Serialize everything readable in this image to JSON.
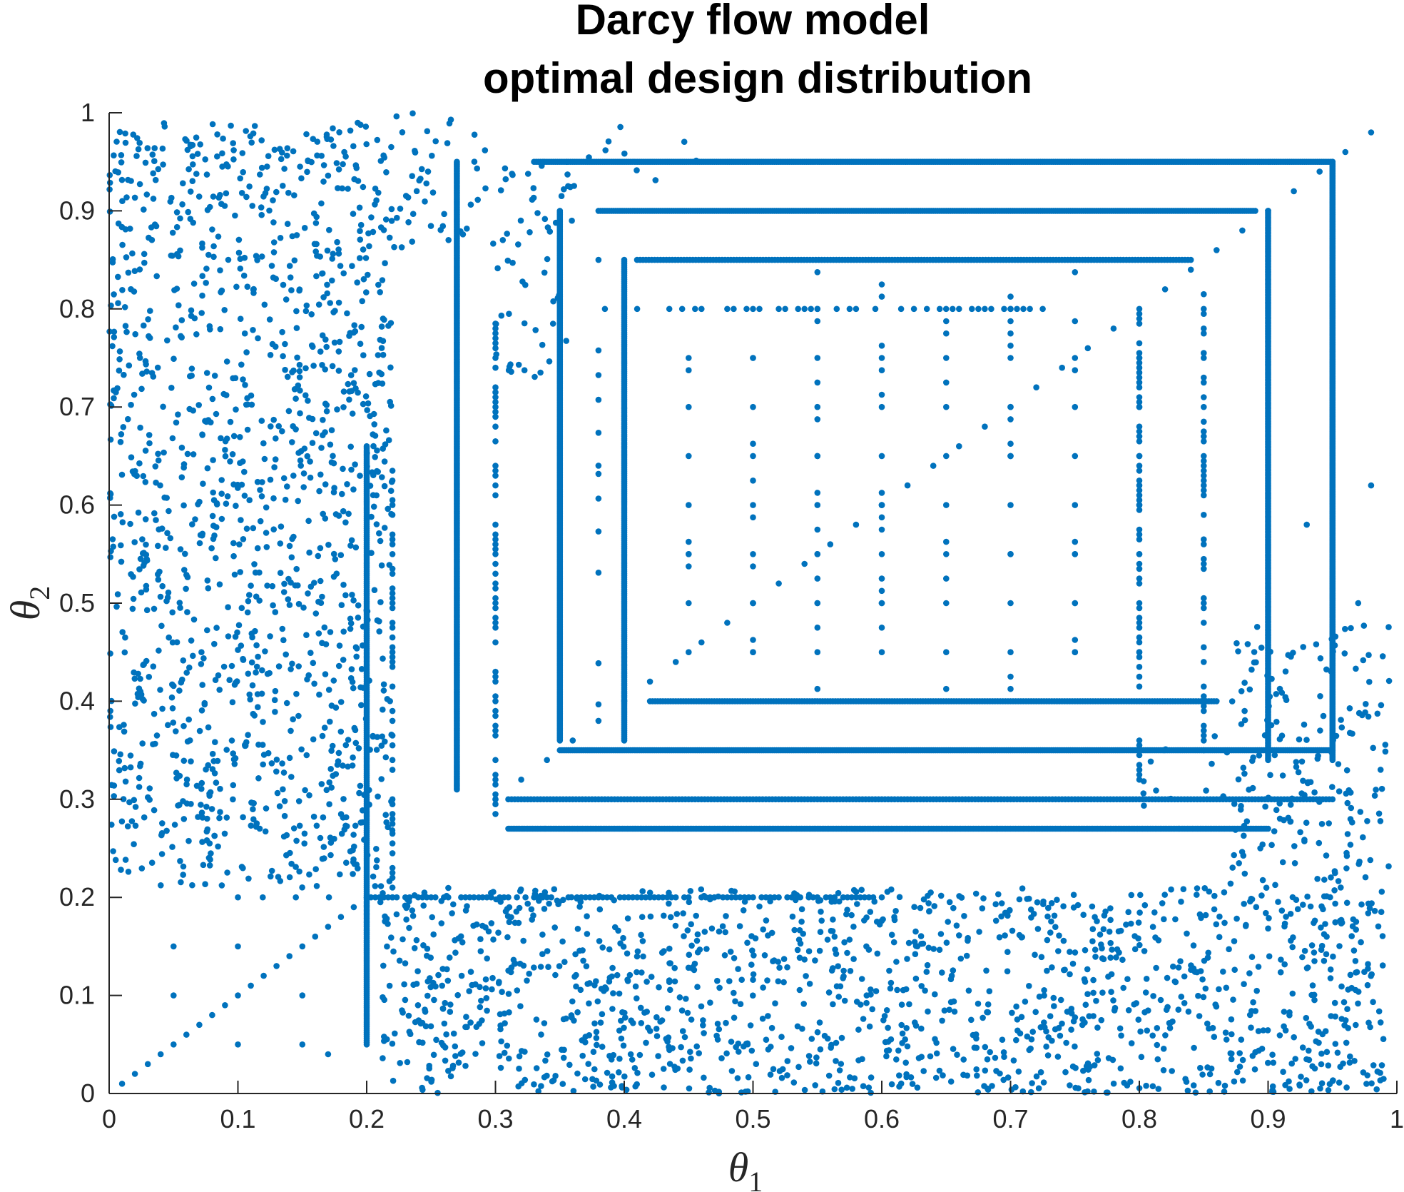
{
  "chart_data": {
    "type": "scatter",
    "title": [
      "Darcy flow model",
      "optimal design distribution"
    ],
    "xlabel": {
      "symbol": "θ",
      "subscript": "1"
    },
    "ylabel": {
      "symbol": "θ",
      "subscript": "2"
    },
    "xlim": [
      0,
      1
    ],
    "ylim": [
      0,
      1
    ],
    "xticks": [
      "0",
      "0.1",
      "0.2",
      "0.3",
      "0.4",
      "0.5",
      "0.6",
      "0.7",
      "0.8",
      "0.9",
      "1"
    ],
    "yticks": [
      "0",
      "0.1",
      "0.2",
      "0.3",
      "0.4",
      "0.5",
      "0.6",
      "0.7",
      "0.8",
      "0.9",
      "1"
    ],
    "grid": false,
    "marker_color": "#0072BD",
    "series": [
      {
        "values": [
          [
            0.01,
            0.01
          ],
          [
            0.02,
            0.02
          ],
          [
            0.03,
            0.03
          ],
          [
            0.04,
            0.04
          ],
          [
            0.05,
            0.05
          ],
          [
            0.06,
            0.06
          ],
          [
            0.07,
            0.07
          ],
          [
            0.08,
            0.08
          ],
          [
            0.09,
            0.09
          ],
          [
            0.1,
            0.1
          ],
          [
            0.11,
            0.11
          ],
          [
            0.12,
            0.12
          ],
          [
            0.13,
            0.13
          ],
          [
            0.14,
            0.14
          ],
          [
            0.15,
            0.15
          ],
          [
            0.16,
            0.16
          ],
          [
            0.17,
            0.17
          ],
          [
            0.18,
            0.18
          ],
          [
            0.19,
            0.19
          ],
          [
            0.05,
            0.15
          ],
          [
            0.05,
            0.1
          ],
          [
            0.1,
            0.15
          ],
          [
            0.1,
            0.05
          ],
          [
            0.15,
            0.1
          ],
          [
            0.15,
            0.05
          ],
          [
            0.17,
            0.04
          ],
          [
            0.3,
            0.3
          ],
          [
            0.32,
            0.32
          ],
          [
            0.34,
            0.34
          ],
          [
            0.36,
            0.36
          ],
          [
            0.38,
            0.38
          ],
          [
            0.4,
            0.4
          ],
          [
            0.42,
            0.42
          ],
          [
            0.44,
            0.44
          ],
          [
            0.46,
            0.46
          ],
          [
            0.48,
            0.48
          ],
          [
            0.5,
            0.5
          ],
          [
            0.52,
            0.52
          ],
          [
            0.54,
            0.54
          ],
          [
            0.56,
            0.56
          ],
          [
            0.58,
            0.58
          ],
          [
            0.6,
            0.6
          ],
          [
            0.62,
            0.62
          ],
          [
            0.64,
            0.64
          ],
          [
            0.66,
            0.66
          ],
          [
            0.68,
            0.68
          ],
          [
            0.7,
            0.7
          ],
          [
            0.72,
            0.72
          ],
          [
            0.74,
            0.74
          ],
          [
            0.76,
            0.76
          ],
          [
            0.78,
            0.78
          ],
          [
            0.8,
            0.8
          ],
          [
            0.82,
            0.82
          ],
          [
            0.84,
            0.84
          ],
          [
            0.86,
            0.86
          ],
          [
            0.88,
            0.88
          ],
          [
            0.9,
            0.9
          ],
          [
            0.92,
            0.92
          ],
          [
            0.94,
            0.94
          ],
          [
            0.96,
            0.96
          ],
          [
            0.98,
            0.98
          ],
          [
            0.45,
            0.5
          ],
          [
            0.5,
            0.5
          ],
          [
            0.55,
            0.5
          ],
          [
            0.6,
            0.5
          ],
          [
            0.65,
            0.5
          ],
          [
            0.7,
            0.5
          ],
          [
            0.75,
            0.5
          ],
          [
            0.8,
            0.5
          ],
          [
            0.45,
            0.55
          ],
          [
            0.5,
            0.55
          ],
          [
            0.55,
            0.55
          ],
          [
            0.6,
            0.55
          ],
          [
            0.65,
            0.55
          ],
          [
            0.7,
            0.55
          ],
          [
            0.75,
            0.55
          ],
          [
            0.8,
            0.55
          ],
          [
            0.45,
            0.6
          ],
          [
            0.5,
            0.6
          ],
          [
            0.55,
            0.6
          ],
          [
            0.6,
            0.6
          ],
          [
            0.65,
            0.6
          ],
          [
            0.7,
            0.6
          ],
          [
            0.75,
            0.6
          ],
          [
            0.8,
            0.6
          ],
          [
            0.45,
            0.65
          ],
          [
            0.5,
            0.65
          ],
          [
            0.55,
            0.65
          ],
          [
            0.6,
            0.65
          ],
          [
            0.65,
            0.65
          ],
          [
            0.7,
            0.65
          ],
          [
            0.75,
            0.65
          ],
          [
            0.8,
            0.65
          ],
          [
            0.45,
            0.7
          ],
          [
            0.5,
            0.7
          ],
          [
            0.55,
            0.7
          ],
          [
            0.6,
            0.7
          ],
          [
            0.65,
            0.7
          ],
          [
            0.7,
            0.7
          ],
          [
            0.75,
            0.7
          ],
          [
            0.8,
            0.7
          ],
          [
            0.45,
            0.75
          ],
          [
            0.5,
            0.75
          ],
          [
            0.55,
            0.75
          ],
          [
            0.6,
            0.75
          ],
          [
            0.65,
            0.75
          ],
          [
            0.7,
            0.75
          ],
          [
            0.75,
            0.75
          ],
          [
            0.8,
            0.75
          ],
          [
            0.45,
            0.45
          ],
          [
            0.5,
            0.45
          ],
          [
            0.55,
            0.45
          ],
          [
            0.6,
            0.45
          ],
          [
            0.65,
            0.45
          ],
          [
            0.7,
            0.45
          ],
          [
            0.75,
            0.45
          ],
          [
            0.8,
            0.45
          ],
          [
            0.98,
            0.62
          ],
          [
            0.93,
            0.58
          ],
          [
            0.97,
            0.5
          ],
          [
            0.85,
            0.5
          ]
        ]
      }
    ],
    "regions": {
      "segments_h": [
        [
          0.33,
          0.95,
          0.95,
          3.0
        ],
        [
          0.38,
          0.89,
          0.9,
          3.0
        ],
        [
          0.41,
          0.84,
          0.85,
          2.2
        ],
        [
          0.38,
          0.74,
          0.8,
          1.0
        ],
        [
          0.42,
          0.86,
          0.4,
          2.5
        ],
        [
          0.35,
          0.95,
          0.35,
          3.0
        ],
        [
          0.31,
          0.95,
          0.3,
          2.0
        ],
        [
          0.31,
          0.9,
          0.27,
          4.0
        ],
        [
          0.2,
          0.6,
          0.2,
          1.5
        ],
        [
          0.1,
          0.19,
          0.2,
          0.8
        ]
      ],
      "segments_v": [
        [
          0.95,
          0.34,
          0.95,
          4.0
        ],
        [
          0.9,
          0.34,
          0.9,
          3.0
        ],
        [
          0.85,
          0.35,
          0.82,
          1.0
        ],
        [
          0.8,
          0.3,
          0.8,
          1.0
        ],
        [
          0.4,
          0.36,
          0.85,
          2.5
        ],
        [
          0.35,
          0.36,
          0.9,
          4.0
        ],
        [
          0.27,
          0.31,
          0.95,
          4.0
        ],
        [
          0.3,
          0.28,
          0.8,
          1.0
        ],
        [
          0.2,
          0.05,
          0.66,
          2.5
        ],
        [
          0.22,
          0.2,
          0.65,
          1.0
        ],
        [
          0.38,
          0.38,
          0.85,
          0.6
        ],
        [
          0.45,
          0.4,
          0.85,
          0.4
        ],
        [
          0.5,
          0.4,
          0.85,
          0.4
        ],
        [
          0.55,
          0.4,
          0.85,
          0.4
        ],
        [
          0.6,
          0.4,
          0.85,
          0.4
        ],
        [
          0.65,
          0.4,
          0.85,
          0.4
        ],
        [
          0.7,
          0.4,
          0.85,
          0.4
        ],
        [
          0.75,
          0.4,
          0.85,
          0.4
        ]
      ],
      "uniform_blocks": [
        [
          0.0,
          0.22,
          0.21,
          0.99,
          7.5
        ],
        [
          0.21,
          0.99,
          0.0,
          0.21,
          8.5
        ],
        [
          0.87,
          0.995,
          0.21,
          0.48,
          5.5
        ],
        [
          0.3,
          0.36,
          0.73,
          0.96,
          4.0
        ],
        [
          0.22,
          0.3,
          0.86,
          1.0,
          4.0
        ],
        [
          0.36,
          0.46,
          0.92,
          1.0,
          1.2
        ],
        [
          0.79,
          0.88,
          0.28,
          0.38,
          1.5
        ]
      ]
    }
  }
}
